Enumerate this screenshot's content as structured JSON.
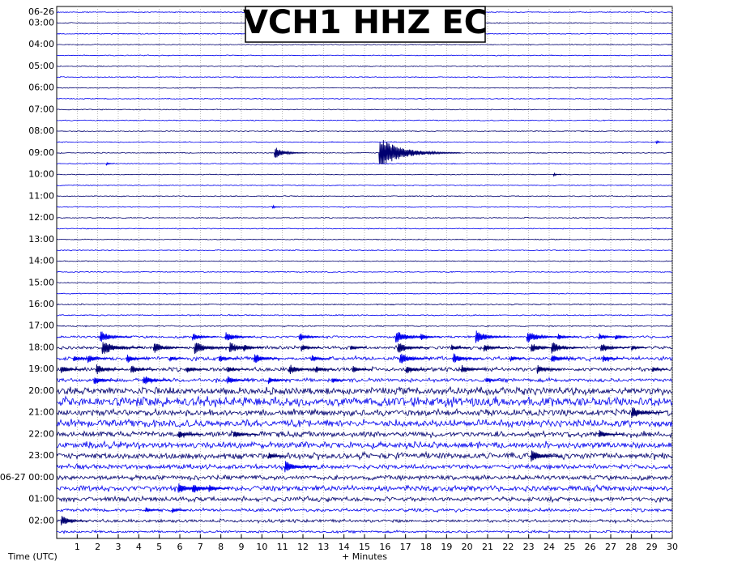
{
  "chart_data": {
    "type": "helicorder",
    "title": "VCH1 HHZ EC",
    "xlabel": "+ Minutes",
    "ylabel": "Time (UTC)",
    "xlim": [
      0,
      30
    ],
    "xticks": [
      1,
      2,
      3,
      4,
      5,
      6,
      7,
      8,
      9,
      10,
      11,
      12,
      13,
      14,
      15,
      16,
      17,
      18,
      19,
      20,
      21,
      22,
      23,
      24,
      25,
      26,
      27,
      28,
      29,
      30
    ],
    "grid": true,
    "colors": [
      "#0000ee",
      "#000070"
    ],
    "row_labels": [
      "06-26",
      "03:00",
      null,
      "04:00",
      null,
      "05:00",
      null,
      "06:00",
      null,
      "07:00",
      null,
      "08:00",
      null,
      "09:00",
      null,
      "10:00",
      null,
      "11:00",
      null,
      "12:00",
      null,
      "13:00",
      null,
      "14:00",
      null,
      "15:00",
      null,
      "16:00",
      null,
      "17:00",
      null,
      "18:00",
      null,
      "19:00",
      null,
      "20:00",
      null,
      "21:00",
      null,
      "22:00",
      null,
      "23:00",
      null,
      "06-27 00:00",
      null,
      "01:00",
      null,
      "02:00",
      null
    ],
    "noise": [
      0.6,
      0.6,
      0.6,
      0.6,
      0.6,
      0.6,
      0.6,
      0.6,
      0.6,
      0.6,
      0.6,
      0.6,
      0.6,
      0.6,
      0.6,
      0.6,
      0.6,
      0.6,
      0.6,
      0.6,
      0.6,
      0.6,
      0.6,
      0.6,
      0.6,
      0.6,
      0.6,
      0.8,
      0.8,
      0.8,
      1.5,
      2,
      2.5,
      2.5,
      2.5,
      4.5,
      6,
      4,
      4.5,
      3.5,
      4,
      4,
      3,
      3,
      3.5,
      3,
      2,
      2,
      1.5
    ],
    "events": [
      {
        "row": 12,
        "minute": 29.2,
        "amplitude": 2
      },
      {
        "row": 13,
        "minute": 10.6,
        "amplitude": 8
      },
      {
        "row": 13,
        "minute": 15.7,
        "amplitude": 20
      },
      {
        "row": 14,
        "minute": 2.4,
        "amplitude": 2
      },
      {
        "row": 15,
        "minute": 24.2,
        "amplitude": 2
      },
      {
        "row": 18,
        "minute": 10.5,
        "amplitude": 2
      },
      {
        "row": 30,
        "minute": 2.1,
        "amplitude": 8
      },
      {
        "row": 30,
        "minute": 6.6,
        "amplitude": 6
      },
      {
        "row": 30,
        "minute": 8.2,
        "amplitude": 7
      },
      {
        "row": 30,
        "minute": 11.8,
        "amplitude": 6
      },
      {
        "row": 30,
        "minute": 16.5,
        "amplitude": 9
      },
      {
        "row": 30,
        "minute": 17.7,
        "amplitude": 5
      },
      {
        "row": 30,
        "minute": 20.4,
        "amplitude": 9
      },
      {
        "row": 30,
        "minute": 22.9,
        "amplitude": 9
      },
      {
        "row": 30,
        "minute": 24.4,
        "amplitude": 5
      },
      {
        "row": 30,
        "minute": 26.4,
        "amplitude": 5
      },
      {
        "row": 30,
        "minute": 27.2,
        "amplitude": 4
      },
      {
        "row": 31,
        "minute": 2.2,
        "amplitude": 10
      },
      {
        "row": 31,
        "minute": 4.7,
        "amplitude": 8
      },
      {
        "row": 31,
        "minute": 6.7,
        "amplitude": 9
      },
      {
        "row": 31,
        "minute": 8.4,
        "amplitude": 8
      },
      {
        "row": 31,
        "minute": 9.1,
        "amplitude": 5
      },
      {
        "row": 31,
        "minute": 11.9,
        "amplitude": 5
      },
      {
        "row": 31,
        "minute": 14.3,
        "amplitude": 4
      },
      {
        "row": 31,
        "minute": 16.6,
        "amplitude": 8
      },
      {
        "row": 31,
        "minute": 19.2,
        "amplitude": 5
      },
      {
        "row": 31,
        "minute": 20.8,
        "amplitude": 6
      },
      {
        "row": 31,
        "minute": 23.1,
        "amplitude": 7
      },
      {
        "row": 31,
        "minute": 24.1,
        "amplitude": 8
      },
      {
        "row": 31,
        "minute": 26.5,
        "amplitude": 7
      },
      {
        "row": 31,
        "minute": 28.0,
        "amplitude": 4
      },
      {
        "row": 32,
        "minute": 0.8,
        "amplitude": 5
      },
      {
        "row": 32,
        "minute": 1.5,
        "amplitude": 6
      },
      {
        "row": 32,
        "minute": 3.4,
        "amplitude": 6
      },
      {
        "row": 32,
        "minute": 5.5,
        "amplitude": 4
      },
      {
        "row": 32,
        "minute": 7.9,
        "amplitude": 5
      },
      {
        "row": 32,
        "minute": 9.6,
        "amplitude": 7
      },
      {
        "row": 32,
        "minute": 12.4,
        "amplitude": 5
      },
      {
        "row": 32,
        "minute": 16.7,
        "amplitude": 8
      },
      {
        "row": 32,
        "minute": 19.3,
        "amplitude": 7
      },
      {
        "row": 32,
        "minute": 22.1,
        "amplitude": 4
      },
      {
        "row": 32,
        "minute": 24.1,
        "amplitude": 6
      },
      {
        "row": 32,
        "minute": 26.6,
        "amplitude": 5
      },
      {
        "row": 33,
        "minute": 0.2,
        "amplitude": 6
      },
      {
        "row": 33,
        "minute": 1.9,
        "amplitude": 7
      },
      {
        "row": 33,
        "minute": 3.6,
        "amplitude": 6
      },
      {
        "row": 33,
        "minute": 6.3,
        "amplitude": 5
      },
      {
        "row": 33,
        "minute": 8.3,
        "amplitude": 5
      },
      {
        "row": 33,
        "minute": 11.3,
        "amplitude": 7
      },
      {
        "row": 33,
        "minute": 12.6,
        "amplitude": 5
      },
      {
        "row": 33,
        "minute": 14.4,
        "amplitude": 5
      },
      {
        "row": 33,
        "minute": 17.0,
        "amplitude": 6
      },
      {
        "row": 33,
        "minute": 19.7,
        "amplitude": 6
      },
      {
        "row": 33,
        "minute": 23.4,
        "amplitude": 6
      },
      {
        "row": 33,
        "minute": 29.0,
        "amplitude": 4
      },
      {
        "row": 34,
        "minute": 1.8,
        "amplitude": 6
      },
      {
        "row": 34,
        "minute": 4.2,
        "amplitude": 7
      },
      {
        "row": 34,
        "minute": 8.3,
        "amplitude": 6
      },
      {
        "row": 34,
        "minute": 10.3,
        "amplitude": 5
      },
      {
        "row": 34,
        "minute": 13.4,
        "amplitude": 4
      },
      {
        "row": 34,
        "minute": 20.9,
        "amplitude": 4
      },
      {
        "row": 37,
        "minute": 28.0,
        "amplitude": 8
      },
      {
        "row": 39,
        "minute": 5.9,
        "amplitude": 6
      },
      {
        "row": 39,
        "minute": 8.6,
        "amplitude": 6
      },
      {
        "row": 39,
        "minute": 26.4,
        "amplitude": 6
      },
      {
        "row": 41,
        "minute": 10.3,
        "amplitude": 5
      },
      {
        "row": 41,
        "minute": 23.1,
        "amplitude": 8
      },
      {
        "row": 42,
        "minute": 11.1,
        "amplitude": 8
      },
      {
        "row": 44,
        "minute": 5.9,
        "amplitude": 7
      },
      {
        "row": 44,
        "minute": 6.6,
        "amplitude": 7
      },
      {
        "row": 44,
        "minute": 7.4,
        "amplitude": 5
      },
      {
        "row": 46,
        "minute": 4.3,
        "amplitude": 4
      },
      {
        "row": 46,
        "minute": 5.6,
        "amplitude": 4
      },
      {
        "row": 47,
        "minute": 0.2,
        "amplitude": 7
      }
    ]
  }
}
